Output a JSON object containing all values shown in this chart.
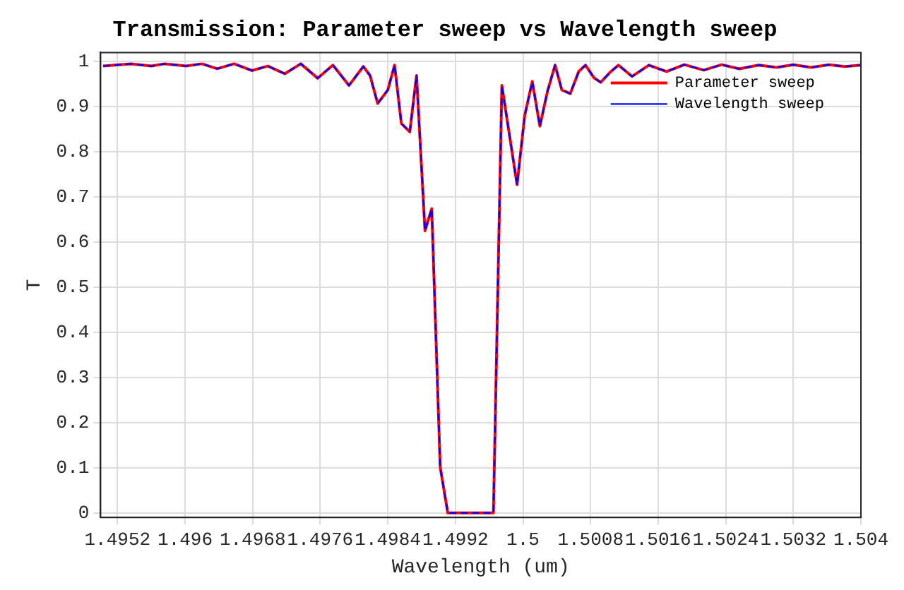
{
  "chart_data": {
    "type": "line",
    "title": "Transmission: Parameter sweep vs Wavelength sweep",
    "xlabel": "Wavelength (um)",
    "ylabel": "T",
    "x": [
      1.49503,
      1.49536,
      1.4956,
      1.49576,
      1.49601,
      1.4962,
      1.49638,
      1.49658,
      1.49679,
      1.49698,
      1.49718,
      1.49737,
      1.49757,
      1.49775,
      1.49794,
      1.49811,
      1.49819,
      1.49828,
      1.4984,
      1.49848,
      1.49856,
      1.49866,
      1.49874,
      1.49884,
      1.49892,
      1.49902,
      1.49911,
      1.4992,
      1.49929,
      1.49938,
      1.49947,
      1.49956,
      1.49965,
      1.49975,
      1.49993,
      1.50002,
      1.50011,
      1.5002,
      1.50029,
      1.50038,
      1.50046,
      1.50056,
      1.50066,
      1.50074,
      1.50084,
      1.50092,
      1.50103,
      1.50113,
      1.50129,
      1.50149,
      1.5017,
      1.50191,
      1.50214,
      1.50235,
      1.50256,
      1.50279,
      1.503,
      1.5032,
      1.50341,
      1.50362,
      1.50381,
      1.504
    ],
    "series": [
      {
        "name": "Parameter sweep",
        "color": "#ff0000",
        "line_style": "solid",
        "values": [
          0.99,
          0.995,
          0.99,
          0.995,
          0.99,
          0.995,
          0.984,
          0.995,
          0.98,
          0.99,
          0.973,
          0.995,
          0.963,
          0.992,
          0.947,
          0.989,
          0.969,
          0.907,
          0.937,
          0.992,
          0.863,
          0.844,
          0.969,
          0.625,
          0.674,
          0.102,
          0,
          0,
          0,
          0,
          0,
          0,
          0,
          0.947,
          0.727,
          0.88,
          0.956,
          0.857,
          0.934,
          0.992,
          0.937,
          0.929,
          0.978,
          0.992,
          0.964,
          0.954,
          0.976,
          0.992,
          0.967,
          0.992,
          0.978,
          0.993,
          0.981,
          0.993,
          0.984,
          0.992,
          0.987,
          0.993,
          0.987,
          0.993,
          0.989,
          0.992
        ]
      },
      {
        "name": "Wavelength sweep",
        "color": "#0000ff",
        "line_style": "dashed",
        "values": [
          0.99,
          0.995,
          0.99,
          0.995,
          0.99,
          0.995,
          0.984,
          0.995,
          0.98,
          0.99,
          0.973,
          0.995,
          0.963,
          0.992,
          0.947,
          0.989,
          0.969,
          0.907,
          0.937,
          0.992,
          0.863,
          0.844,
          0.969,
          0.625,
          0.674,
          0.102,
          0,
          0,
          0,
          0,
          0,
          0,
          0,
          0.947,
          0.727,
          0.88,
          0.956,
          0.857,
          0.934,
          0.992,
          0.937,
          0.929,
          0.978,
          0.992,
          0.964,
          0.954,
          0.976,
          0.992,
          0.967,
          0.992,
          0.978,
          0.993,
          0.981,
          0.993,
          0.984,
          0.992,
          0.987,
          0.993,
          0.987,
          0.993,
          0.989,
          0.992
        ]
      }
    ],
    "xlim": [
      1.495,
      1.504
    ],
    "xticks": [
      1.4952,
      1.496,
      1.4968,
      1.4976,
      1.4984,
      1.4992,
      1.5,
      1.5008,
      1.5016,
      1.5024,
      1.5032,
      1.504
    ],
    "ylim": [
      -0.01,
      1.02
    ],
    "yticks": [
      0,
      0.1,
      0.2,
      0.3,
      0.4,
      0.5,
      0.6,
      0.7,
      0.8,
      0.9,
      1
    ],
    "grid": true,
    "legend": "top right"
  }
}
